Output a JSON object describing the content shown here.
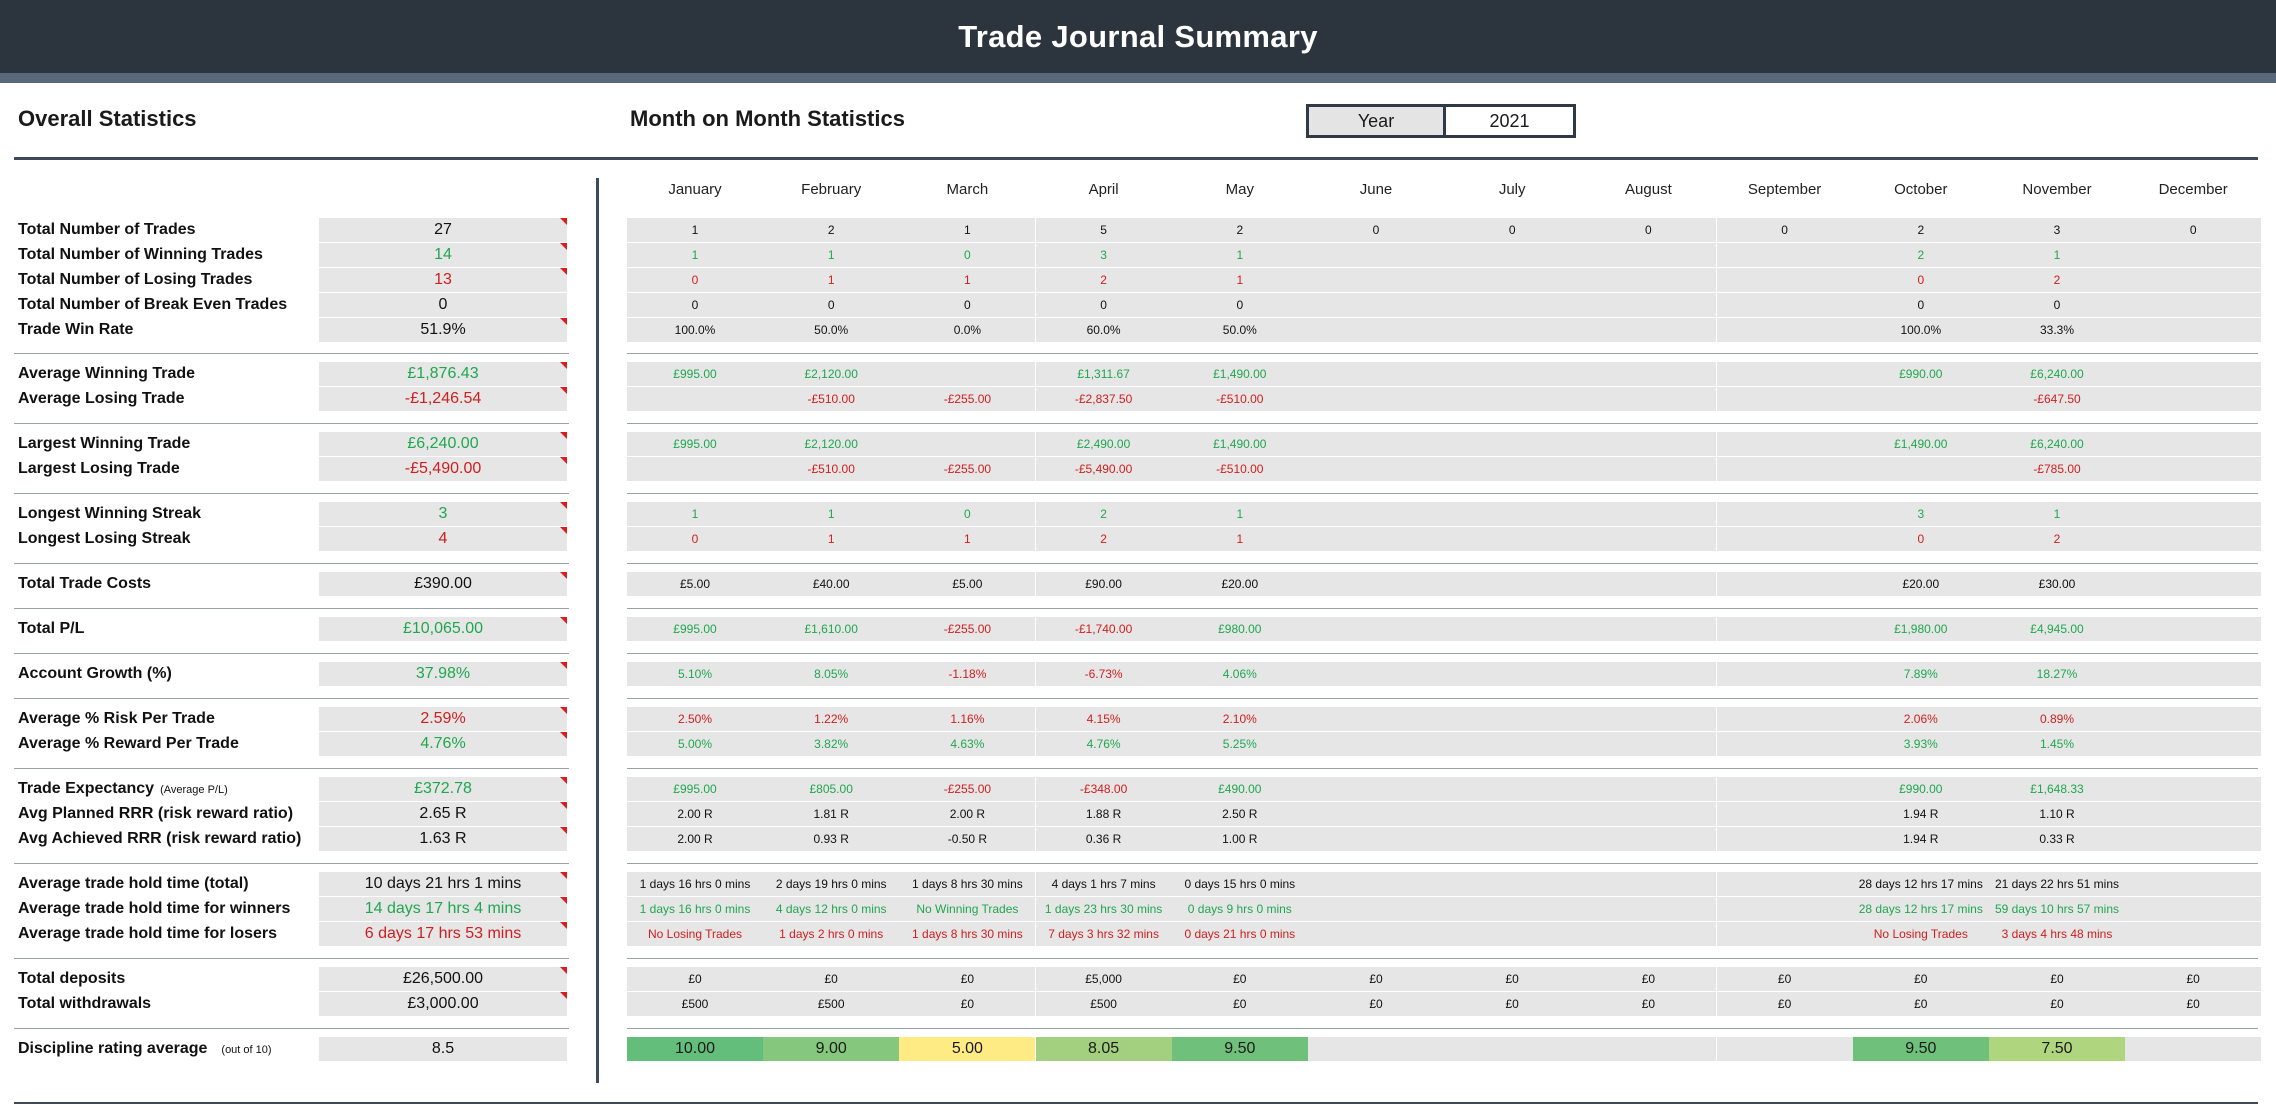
{
  "title": "Trade Journal Summary",
  "overall": {
    "heading": "Overall Statistics",
    "rows": [
      {
        "label": "Total Number of Trades",
        "value": "27",
        "color": "black"
      },
      {
        "label": "Total Number of Winning Trades",
        "value": "14",
        "color": "green"
      },
      {
        "label": "Total Number of Losing Trades",
        "value": "13",
        "color": "red"
      },
      {
        "label": "Total Number of Break Even Trades",
        "value": "0",
        "color": "black"
      },
      {
        "label": "Trade Win Rate",
        "value": "51.9%",
        "color": "black"
      },
      {
        "label": "Average Winning Trade",
        "value": "£1,876.43",
        "color": "green"
      },
      {
        "label": "Average Losing Trade",
        "value": "-£1,246.54",
        "color": "red"
      },
      {
        "label": "Largest Winning Trade",
        "value": "£6,240.00",
        "color": "green"
      },
      {
        "label": "Largest Losing Trade",
        "value": "-£5,490.00",
        "color": "red"
      },
      {
        "label": "Longest Winning Streak",
        "value": "3",
        "color": "green"
      },
      {
        "label": "Longest Losing Streak",
        "value": "4",
        "color": "red"
      },
      {
        "label": "Total Trade Costs",
        "value": "£390.00",
        "color": "black"
      },
      {
        "label": "Total P/L",
        "value": "£10,065.00",
        "color": "green"
      },
      {
        "label": "Account Growth (%)",
        "value": "37.98%",
        "color": "green"
      },
      {
        "label": "Average % Risk Per Trade",
        "value": "2.59%",
        "color": "red"
      },
      {
        "label": "Average % Reward Per Trade",
        "value": "4.76%",
        "color": "green"
      },
      {
        "label": "Trade Expectancy",
        "sub": "(Average P/L)",
        "value": "£372.78",
        "color": "green"
      },
      {
        "label": "Avg Planned RRR (risk reward ratio)",
        "value": "2.65 R",
        "color": "black"
      },
      {
        "label": "Avg Achieved RRR (risk reward ratio)",
        "value": "1.63 R",
        "color": "black"
      },
      {
        "label": "Average trade hold time (total)",
        "value": "10 days 21 hrs 1 mins",
        "color": "black"
      },
      {
        "label": "Average trade hold time for winners",
        "value": "14 days 17 hrs 4 mins",
        "color": "green"
      },
      {
        "label": "Average trade hold time for losers",
        "value": "6 days 17 hrs 53 mins",
        "color": "red"
      },
      {
        "label": "Total deposits",
        "value": "£26,500.00",
        "color": "black"
      },
      {
        "label": "Total withdrawals",
        "value": "£3,000.00",
        "color": "black"
      },
      {
        "label": "Discipline rating average",
        "sub": "(out of 10)",
        "value": "8.5",
        "color": "black"
      }
    ]
  },
  "monthly": {
    "heading": "Month on Month Statistics",
    "year_label": "Year",
    "year_value": "2021",
    "months": [
      "January",
      "February",
      "March",
      "April",
      "May",
      "June",
      "July",
      "August",
      "September",
      "October",
      "November",
      "December"
    ],
    "rows": [
      {
        "color": "black",
        "values": [
          "1",
          "2",
          "1",
          "5",
          "2",
          "0",
          "0",
          "0",
          "0",
          "2",
          "3",
          "0"
        ]
      },
      {
        "color": "green",
        "values": [
          "1",
          "1",
          "0",
          "3",
          "1",
          "",
          "",
          "",
          "",
          "2",
          "1",
          ""
        ]
      },
      {
        "color": "red",
        "values": [
          "0",
          "1",
          "1",
          "2",
          "1",
          "",
          "",
          "",
          "",
          "0",
          "2",
          ""
        ]
      },
      {
        "color": "black",
        "values": [
          "0",
          "0",
          "0",
          "0",
          "0",
          "",
          "",
          "",
          "",
          "0",
          "0",
          ""
        ]
      },
      {
        "color": "black",
        "values": [
          "100.0%",
          "50.0%",
          "0.0%",
          "60.0%",
          "50.0%",
          "",
          "",
          "",
          "",
          "100.0%",
          "33.3%",
          ""
        ]
      },
      {
        "color": "green",
        "values": [
          "£995.00",
          "£2,120.00",
          "",
          "£1,311.67",
          "£1,490.00",
          "",
          "",
          "",
          "",
          "£990.00",
          "£6,240.00",
          ""
        ]
      },
      {
        "color": "red",
        "values": [
          "",
          "-£510.00",
          "-£255.00",
          "-£2,837.50",
          "-£510.00",
          "",
          "",
          "",
          "",
          "",
          "-£647.50",
          ""
        ]
      },
      {
        "color": "green",
        "values": [
          "£995.00",
          "£2,120.00",
          "",
          "£2,490.00",
          "£1,490.00",
          "",
          "",
          "",
          "",
          "£1,490.00",
          "£6,240.00",
          ""
        ]
      },
      {
        "color": "red",
        "values": [
          "",
          "-£510.00",
          "-£255.00",
          "-£5,490.00",
          "-£510.00",
          "",
          "",
          "",
          "",
          "",
          "-£785.00",
          ""
        ]
      },
      {
        "color": "green",
        "values": [
          "1",
          "1",
          "0",
          "2",
          "1",
          "",
          "",
          "",
          "",
          "3",
          "1",
          ""
        ]
      },
      {
        "color": "red",
        "values": [
          "0",
          "1",
          "1",
          "2",
          "1",
          "",
          "",
          "",
          "",
          "0",
          "2",
          ""
        ]
      },
      {
        "color": "black",
        "values": [
          "£5.00",
          "£40.00",
          "£5.00",
          "£90.00",
          "£20.00",
          "",
          "",
          "",
          "",
          "£20.00",
          "£30.00",
          ""
        ]
      },
      {
        "color": [
          "green",
          "green",
          "red",
          "red",
          "green",
          "",
          "",
          "",
          "",
          "green",
          "green",
          ""
        ],
        "values": [
          "£995.00",
          "£1,610.00",
          "-£255.00",
          "-£1,740.00",
          "£980.00",
          "",
          "",
          "",
          "",
          "£1,980.00",
          "£4,945.00",
          ""
        ]
      },
      {
        "color": [
          "green",
          "green",
          "red",
          "red",
          "green",
          "",
          "",
          "",
          "",
          "green",
          "green",
          ""
        ],
        "values": [
          "5.10%",
          "8.05%",
          "-1.18%",
          "-6.73%",
          "4.06%",
          "",
          "",
          "",
          "",
          "7.89%",
          "18.27%",
          ""
        ]
      },
      {
        "color": "red",
        "values": [
          "2.50%",
          "1.22%",
          "1.16%",
          "4.15%",
          "2.10%",
          "",
          "",
          "",
          "",
          "2.06%",
          "0.89%",
          ""
        ]
      },
      {
        "color": "green",
        "values": [
          "5.00%",
          "3.82%",
          "4.63%",
          "4.76%",
          "5.25%",
          "",
          "",
          "",
          "",
          "3.93%",
          "1.45%",
          ""
        ]
      },
      {
        "color": [
          "green",
          "green",
          "red",
          "red",
          "green",
          "",
          "",
          "",
          "",
          "green",
          "green",
          ""
        ],
        "values": [
          "£995.00",
          "£805.00",
          "-£255.00",
          "-£348.00",
          "£490.00",
          "",
          "",
          "",
          "",
          "£990.00",
          "£1,648.33",
          ""
        ]
      },
      {
        "color": "black",
        "values": [
          "2.00 R",
          "1.81 R",
          "2.00 R",
          "1.88 R",
          "2.50 R",
          "",
          "",
          "",
          "",
          "1.94 R",
          "1.10 R",
          ""
        ]
      },
      {
        "color": "black",
        "values": [
          "2.00 R",
          "0.93 R",
          "-0.50 R",
          "0.36 R",
          "1.00 R",
          "",
          "",
          "",
          "",
          "1.94 R",
          "0.33 R",
          ""
        ]
      },
      {
        "color": "black",
        "values": [
          "1 days 16 hrs 0 mins",
          "2 days 19 hrs 0 mins",
          "1 days 8 hrs 30 mins",
          "4 days 1 hrs 7 mins",
          "0 days 15 hrs 0 mins",
          "",
          "",
          "",
          "",
          "28 days 12 hrs 17 mins",
          "21 days 22 hrs 51 mins",
          ""
        ]
      },
      {
        "color": "green",
        "values": [
          "1 days 16 hrs 0 mins",
          "4 days 12 hrs 0 mins",
          "No Winning Trades",
          "1 days 23 hrs 30 mins",
          "0 days 9 hrs 0 mins",
          "",
          "",
          "",
          "",
          "28 days 12 hrs 17 mins",
          "59 days 10 hrs 57 mins",
          ""
        ]
      },
      {
        "color": "red",
        "values": [
          "No Losing Trades",
          "1 days 2 hrs 0 mins",
          "1 days 8 hrs 30 mins",
          "7 days 3 hrs 32 mins",
          "0 days 21 hrs 0 mins",
          "",
          "",
          "",
          "",
          "No Losing Trades",
          "3 days 4 hrs 48 mins",
          ""
        ]
      },
      {
        "color": "black",
        "values": [
          "£0",
          "£0",
          "£0",
          "£5,000",
          "£0",
          "£0",
          "£0",
          "£0",
          "£0",
          "£0",
          "£0",
          "£0"
        ]
      },
      {
        "color": "black",
        "values": [
          "£500",
          "£500",
          "£0",
          "£500",
          "£0",
          "£0",
          "£0",
          "£0",
          "£0",
          "£0",
          "£0",
          "£0"
        ]
      },
      {
        "color": "black",
        "values": [
          "10.00",
          "9.00",
          "5.00",
          "8.05",
          "9.50",
          "",
          "",
          "",
          "",
          "9.50",
          "7.50",
          ""
        ]
      }
    ],
    "discipline_colors": [
      "#63be7b",
      "#85c77c",
      "#ffeb84",
      "#a3d07e",
      "#6ec07b",
      "",
      "",
      "",
      "",
      "#6ec07b",
      "#b0d57f",
      ""
    ]
  }
}
